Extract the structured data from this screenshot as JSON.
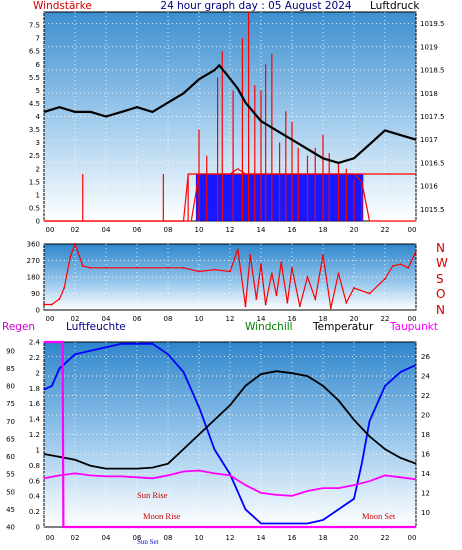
{
  "colors": {
    "red": "#ff0000",
    "blue": "#0000ff",
    "black": "#000000",
    "magenta": "#ff00ff",
    "darkred": "#cc0000",
    "green": "#008000",
    "navy": "#000080"
  },
  "chart_data": [
    {
      "type": "line",
      "title": "24 hour graph day : 05 August 2024",
      "left_label": "Windstärke",
      "right_label": "Luftdruck",
      "x_ticks": [
        "00",
        "02",
        "04",
        "06",
        "08",
        "10",
        "12",
        "14",
        "16",
        "18",
        "20",
        "22",
        "00"
      ],
      "y_left_ticks": [
        "7.5",
        "7",
        "6.5",
        "6",
        "5.5",
        "5",
        "4.5",
        "4",
        "3.5",
        "3",
        "2.5",
        "2",
        "1.5",
        "1",
        "0.5",
        "0"
      ],
      "y_right_ticks": [
        "1019.5",
        "1019",
        "1018.5",
        "1018",
        "1017.5",
        "1017",
        "1016.5",
        "1016",
        "1015.5"
      ],
      "ylim_left": [
        0,
        8
      ],
      "ylim_right": [
        1015.25,
        1019.75
      ],
      "series": [
        {
          "x": [
            0,
            1,
            2,
            3,
            4,
            5,
            6,
            7,
            8,
            9,
            10,
            10.5,
            11,
            11.3,
            11.8,
            12.5,
            13,
            14,
            15,
            16,
            17,
            18,
            19,
            20,
            21,
            22,
            23,
            24
          ],
          "y": [
            1017.6,
            1017.7,
            1017.6,
            1017.6,
            1017.5,
            1017.6,
            1017.7,
            1017.6,
            1017.8,
            1018.0,
            1018.3,
            1018.4,
            1018.5,
            1018.6,
            1018.4,
            1018.1,
            1017.8,
            1017.4,
            1017.2,
            1017.0,
            1016.8,
            1016.6,
            1016.5,
            1016.6,
            1016.9,
            1017.2,
            1017.1,
            1017.0
          ]
        },
        {
          "x": [
            0,
            9,
            9.3,
            10,
            11,
            12,
            13,
            14,
            15,
            16,
            17,
            18,
            19,
            20,
            21,
            22,
            23,
            24
          ],
          "y": [
            0,
            0,
            1.8,
            1.8,
            1.8,
            1.8,
            1.8,
            1.8,
            1.8,
            1.8,
            1.8,
            1.8,
            1.8,
            1.8,
            1.8,
            1.8,
            1.8,
            1.8
          ]
        },
        {
          "x": [
            0,
            9.5,
            10,
            11,
            12,
            12.5,
            13,
            14,
            15,
            16,
            17,
            18,
            19,
            20,
            20.5,
            21,
            22,
            24
          ],
          "y": [
            0,
            0,
            1.8,
            1.8,
            1.8,
            2.0,
            1.8,
            1.8,
            1.8,
            1.8,
            1.8,
            1.8,
            1.8,
            1.8,
            1.5,
            0,
            0,
            0
          ]
        }
      ],
      "wind_spikes": [
        [
          2.5,
          1.8
        ],
        [
          7.7,
          1.8
        ],
        [
          9.3,
          1.8
        ],
        [
          10,
          3.5
        ],
        [
          10.5,
          2.5
        ],
        [
          11.2,
          5.5
        ],
        [
          11.5,
          6.5
        ],
        [
          12.2,
          5.0
        ],
        [
          12.8,
          7.0
        ],
        [
          13.2,
          8.0
        ],
        [
          13.6,
          5.2
        ],
        [
          14.0,
          5.0
        ],
        [
          14.3,
          6.0
        ],
        [
          14.7,
          6.4
        ],
        [
          15.2,
          3.0
        ],
        [
          15.6,
          4.2
        ],
        [
          16.0,
          3.8
        ],
        [
          16.4,
          2.8
        ],
        [
          17.0,
          2.5
        ],
        [
          17.5,
          2.8
        ],
        [
          18.0,
          3.3
        ],
        [
          18.4,
          2.6
        ],
        [
          19.0,
          2.2
        ],
        [
          19.5,
          2.0
        ],
        [
          20.0,
          1.6
        ],
        [
          20.5,
          1.4
        ]
      ]
    },
    {
      "type": "scatter",
      "title": "",
      "x_ticks": [
        "00",
        "02",
        "04",
        "06",
        "08",
        "10",
        "12",
        "14",
        "16",
        "18",
        "20",
        "22",
        "00"
      ],
      "y_ticks": [
        "360",
        "270",
        "180",
        "90",
        "0"
      ],
      "ylim": [
        0,
        360
      ],
      "compass_labels": [
        "N",
        "W",
        "S",
        "O",
        "N"
      ],
      "x": [
        0,
        0.5,
        1,
        1.3,
        1.7,
        2,
        2.5,
        3,
        4,
        6,
        8,
        9,
        10,
        11,
        12,
        12.5,
        13,
        13.3,
        13.7,
        14,
        14.3,
        14.7,
        15,
        15.3,
        15.7,
        16,
        16.5,
        17,
        17.5,
        18,
        18.5,
        19,
        19.5,
        20,
        21,
        22,
        22.5,
        23,
        23.5,
        24
      ],
      "y": [
        30,
        30,
        60,
        120,
        290,
        360,
        240,
        230,
        230,
        230,
        230,
        230,
        210,
        220,
        210,
        330,
        20,
        300,
        60,
        250,
        30,
        200,
        80,
        260,
        40,
        230,
        20,
        180,
        60,
        300,
        10,
        200,
        40,
        120,
        90,
        170,
        240,
        250,
        230,
        320
      ]
    },
    {
      "type": "line",
      "title": "",
      "left_labels": [
        "Regen",
        "Luftfeuchte"
      ],
      "right_labels": [
        "Windchill",
        "Temperatur",
        "Taupunkt"
      ],
      "x_ticks": [
        "00",
        "02",
        "04",
        "06",
        "08",
        "10",
        "12",
        "14",
        "16",
        "18",
        "20",
        "22",
        "00"
      ],
      "y_humidity_ticks": [
        "90",
        "85",
        "80",
        "75",
        "70",
        "65",
        "60",
        "55",
        "50",
        "45",
        "40"
      ],
      "y_rain_ticks": [
        "2.4",
        "2.2",
        "2",
        "1.8",
        "1.6",
        "1.4",
        "1.2",
        "1",
        "0.8",
        "0.6",
        "0.4",
        "0.2",
        "0"
      ],
      "y_temp_ticks": [
        "26",
        "24",
        "22",
        "20",
        "18",
        "16",
        "14",
        "12",
        "10"
      ],
      "ylim_humidity": [
        40,
        92.5
      ],
      "ylim_temp": [
        8.5,
        27.5
      ],
      "annotations": [
        "Sun Rise",
        "Moon Rise",
        "Sun Set",
        "Moon Set"
      ],
      "series": [
        {
          "name": "Luftfeuchte",
          "x": [
            0,
            0.5,
            1,
            2,
            3,
            4,
            5,
            6,
            7,
            8,
            9,
            10,
            10.5,
            11,
            12,
            12.5,
            13,
            13.5,
            14,
            15,
            16,
            17,
            18,
            19,
            20,
            20.5,
            21,
            22,
            23,
            24
          ],
          "y": [
            79,
            80,
            85,
            89,
            90,
            91,
            92,
            92,
            92,
            89,
            84,
            74,
            68,
            62,
            55,
            50,
            45,
            43,
            41,
            41,
            41,
            41,
            42,
            45,
            48,
            58,
            70,
            80,
            84,
            86
          ]
        },
        {
          "name": "Temperatur",
          "x": [
            0,
            1,
            2,
            3,
            4,
            5,
            6,
            7,
            8,
            9,
            10,
            11,
            12,
            13,
            14,
            15,
            16,
            17,
            18,
            19,
            20,
            21,
            22,
            23,
            24
          ],
          "y": [
            16.0,
            15.7,
            15.4,
            14.8,
            14.5,
            14.5,
            14.5,
            14.6,
            15.0,
            16.5,
            18.0,
            19.5,
            21.0,
            23.0,
            24.2,
            24.5,
            24.3,
            24.0,
            23.0,
            21.5,
            19.5,
            17.8,
            16.5,
            15.6,
            15.0
          ]
        },
        {
          "name": "Taupunkt",
          "x": [
            0,
            1,
            2,
            3,
            4,
            5,
            6,
            7,
            8,
            9,
            10,
            11,
            12,
            13,
            14,
            15,
            16,
            17,
            18,
            19,
            20,
            21,
            22,
            23,
            24
          ],
          "y": [
            13.5,
            13.8,
            14.0,
            13.8,
            13.7,
            13.7,
            13.6,
            13.5,
            13.8,
            14.2,
            14.3,
            14.0,
            13.8,
            12.8,
            12.0,
            11.8,
            11.7,
            12.2,
            12.5,
            12.5,
            12.8,
            13.2,
            13.8,
            13.6,
            13.4
          ]
        },
        {
          "name": "Regen",
          "x": [
            0,
            1.2,
            1.25,
            24
          ],
          "y": [
            2.4,
            2.4,
            0,
            0
          ]
        }
      ]
    }
  ]
}
